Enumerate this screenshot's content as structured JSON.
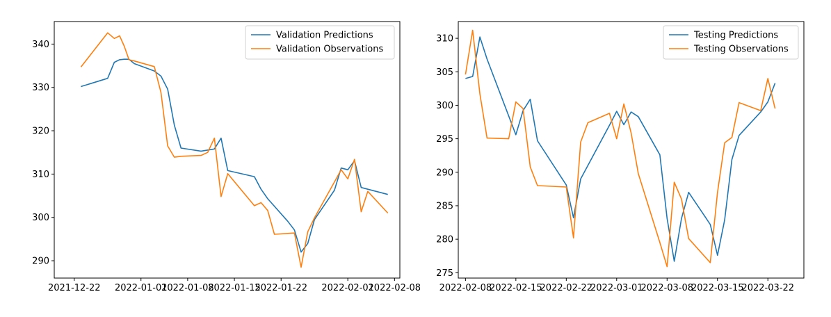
{
  "chart_data": [
    {
      "type": "line",
      "title": "",
      "xlabel": "",
      "ylabel": "",
      "x_unit": "days since 2021-12-22",
      "xlim": [
        -3.0,
        48.8
      ],
      "ylim": [
        286.0,
        345.2
      ],
      "xticks": [
        {
          "value": 0,
          "label": "2021-12-22"
        },
        {
          "value": 10,
          "label": "2022-01-01"
        },
        {
          "value": 17,
          "label": "2022-01-08"
        },
        {
          "value": 24,
          "label": "2022-01-15"
        },
        {
          "value": 31,
          "label": "2022-01-22"
        },
        {
          "value": 41,
          "label": "2022-02-01"
        },
        {
          "value": 48,
          "label": "2022-02-08"
        }
      ],
      "yticks": [
        290,
        300,
        310,
        320,
        330,
        340
      ],
      "legend_position": "top-right",
      "series": [
        {
          "name": "Validation Predictions",
          "color": "#1f77b4",
          "x": [
            1,
            5,
            6,
            6.8,
            7.5,
            8.2,
            9,
            12,
            13,
            14,
            15,
            16,
            19,
            21,
            22,
            23,
            27,
            28,
            29,
            32,
            33,
            34,
            35,
            36,
            39,
            40,
            41,
            42,
            43,
            44,
            47
          ],
          "y": [
            330.2,
            332.1,
            335.8,
            336.4,
            336.5,
            336.5,
            335.5,
            333.8,
            332.6,
            329.6,
            321.3,
            316.0,
            315.3,
            315.8,
            318.3,
            310.8,
            309.4,
            306.5,
            304.3,
            299.1,
            297.1,
            292.0,
            294.0,
            299.5,
            306.3,
            311.4,
            311.0,
            313.1,
            306.9,
            306.5,
            305.3
          ]
        },
        {
          "name": "Validation Observations",
          "color": "#ff7f0e",
          "x": [
            1,
            5,
            6,
            6.8,
            7.5,
            8.2,
            9,
            12,
            13,
            14,
            15,
            16,
            19,
            20,
            21,
            22,
            23,
            27,
            28,
            29,
            30,
            33,
            34,
            35,
            36,
            39,
            40,
            41,
            42,
            43,
            44,
            47
          ],
          "y": [
            334.7,
            342.6,
            341.3,
            341.9,
            339.5,
            336.4,
            336.1,
            334.8,
            328.8,
            316.5,
            313.9,
            314.1,
            314.3,
            315.0,
            318.3,
            304.8,
            310.1,
            302.7,
            303.4,
            301.6,
            296.1,
            296.4,
            288.5,
            296.7,
            299.9,
            308.2,
            311.0,
            308.9,
            313.4,
            301.3,
            306.0,
            301.0
          ]
        }
      ]
    },
    {
      "type": "line",
      "title": "",
      "xlabel": "",
      "ylabel": "",
      "x_unit": "days since 2022-02-08",
      "xlim": [
        -1.0,
        47.0
      ],
      "ylim": [
        274.2,
        312.5
      ],
      "xticks": [
        {
          "value": 0,
          "label": "2022-02-08"
        },
        {
          "value": 7,
          "label": "2022-02-15"
        },
        {
          "value": 14,
          "label": "2022-02-22"
        },
        {
          "value": 21,
          "label": "2022-03-01"
        },
        {
          "value": 28,
          "label": "2022-03-08"
        },
        {
          "value": 35,
          "label": "2022-03-15"
        },
        {
          "value": 42,
          "label": "2022-03-22"
        }
      ],
      "yticks": [
        275,
        280,
        285,
        290,
        295,
        300,
        305,
        310
      ],
      "legend_position": "top-right",
      "series": [
        {
          "name": "Testing Predictions",
          "color": "#1f77b4",
          "x": [
            0,
            1,
            2,
            3,
            7,
            8,
            9,
            10,
            14,
            15,
            16,
            20,
            21,
            22,
            23,
            24,
            27,
            28,
            29,
            30,
            31,
            34,
            35,
            36,
            37,
            38,
            41,
            42,
            43
          ],
          "y": [
            304.0,
            304.3,
            310.2,
            306.9,
            295.6,
            299.2,
            300.9,
            294.7,
            288.1,
            283.2,
            289.0,
            297.0,
            299.1,
            297.1,
            299.0,
            298.3,
            292.6,
            283.1,
            276.7,
            283.1,
            287.0,
            282.2,
            277.6,
            282.9,
            291.9,
            295.5,
            299.0,
            300.5,
            303.3
          ]
        },
        {
          "name": "Testing Observations",
          "color": "#ff7f0e",
          "x": [
            0,
            1,
            2,
            3,
            6,
            7,
            8,
            9,
            10,
            14,
            15,
            16,
            17,
            20,
            21,
            22,
            23,
            24,
            27,
            28,
            29,
            30,
            31,
            34,
            35,
            36,
            37,
            38,
            41,
            42,
            43
          ],
          "y": [
            304.6,
            311.2,
            301.7,
            295.1,
            295.0,
            300.5,
            299.5,
            290.8,
            288.0,
            287.8,
            280.2,
            294.5,
            297.4,
            298.8,
            295.0,
            300.2,
            295.9,
            289.8,
            279.5,
            275.9,
            288.5,
            286.0,
            280.1,
            276.5,
            287.0,
            294.4,
            295.2,
            300.4,
            299.2,
            304.0,
            299.5
          ]
        }
      ]
    }
  ]
}
